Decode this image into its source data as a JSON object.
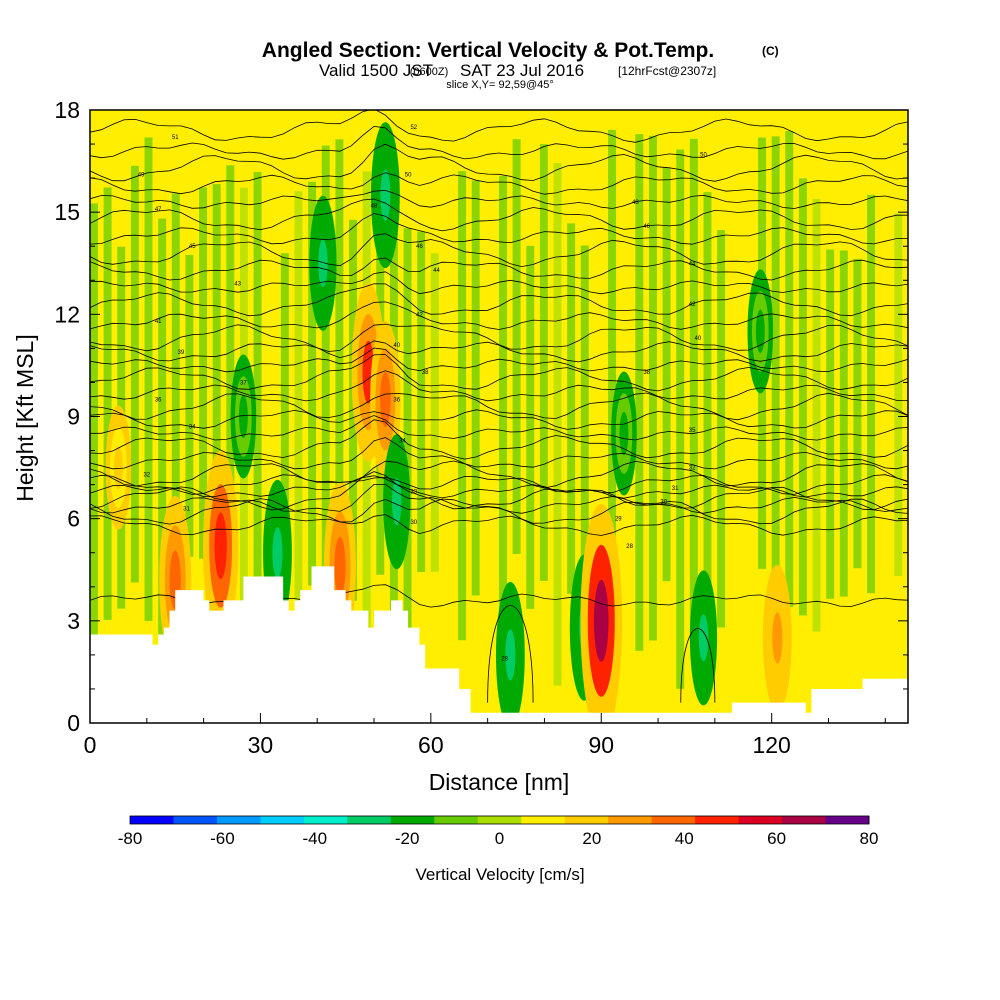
{
  "header": {
    "title_main": "Angled Section: Vertical Velocity & Pot.Temp.",
    "title_unit": "(C)",
    "valid_prefix": "Valid 1500 JST",
    "valid_utc": "(0600Z)",
    "valid_date": "SAT 23 Jul 2016",
    "forecast": "[12hrFcst@2307z]",
    "slice": "slice X,Y= 92,59@45°"
  },
  "chart_data": {
    "type": "heatmap",
    "title": "Angled Section: Vertical Velocity & Pot.Temp.",
    "xlabel": "Distance [nm]",
    "ylabel": "Height [Kft MSL]",
    "xlim": [
      0,
      144
    ],
    "ylim": [
      0,
      18
    ],
    "x_ticks": [
      0,
      30,
      60,
      90,
      120
    ],
    "y_ticks": [
      0,
      3,
      6,
      9,
      12,
      15,
      18
    ],
    "colorbar": {
      "label": "Vertical Velocity [cm/s]",
      "range": [
        -80,
        80
      ],
      "tick_labels": [
        "-80",
        "-60",
        "-40",
        "-20",
        "0",
        "20",
        "40",
        "60",
        "80"
      ],
      "colors": [
        "#0000ff",
        "#0055ff",
        "#0099ff",
        "#00ccff",
        "#00eecc",
        "#00cc66",
        "#00aa00",
        "#66cc00",
        "#aadd00",
        "#ffee00",
        "#ffcc00",
        "#ff9900",
        "#ff6600",
        "#ff2200",
        "#dd0022",
        "#aa0044",
        "#660088"
      ]
    },
    "terrain_height_kft": [
      [
        0,
        2.6
      ],
      [
        6,
        2.6
      ],
      [
        10,
        2.6
      ],
      [
        11,
        2.3
      ],
      [
        12,
        2.6
      ],
      [
        13,
        2.8
      ],
      [
        14,
        3.3
      ],
      [
        15,
        3.9
      ],
      [
        19,
        3.9
      ],
      [
        20,
        3.6
      ],
      [
        21,
        3.3
      ],
      [
        23,
        3.3
      ],
      [
        23.5,
        3.6
      ],
      [
        26,
        3.6
      ],
      [
        27,
        4.3
      ],
      [
        33,
        4.3
      ],
      [
        34,
        3.6
      ],
      [
        35,
        3.3
      ],
      [
        36,
        3.6
      ],
      [
        37,
        3.9
      ],
      [
        38,
        3.9
      ],
      [
        39,
        4.6
      ],
      [
        42,
        4.6
      ],
      [
        43,
        3.9
      ],
      [
        45,
        3.6
      ],
      [
        46,
        3.3
      ],
      [
        48,
        3.3
      ],
      [
        49,
        2.8
      ],
      [
        50,
        3.3
      ],
      [
        52,
        3.3
      ],
      [
        53,
        3.6
      ],
      [
        55,
        3.3
      ],
      [
        56,
        2.8
      ],
      [
        58,
        2.3
      ],
      [
        59,
        1.6
      ],
      [
        64,
        1.6
      ],
      [
        65,
        1.0
      ],
      [
        67,
        0.3
      ],
      [
        112,
        0.3
      ],
      [
        113,
        0.6
      ],
      [
        125,
        0.6
      ],
      [
        126,
        0.3
      ],
      [
        127,
        1.0
      ],
      [
        135,
        1.0
      ],
      [
        136,
        1.3
      ],
      [
        144,
        1.3
      ]
    ],
    "velocity_features": [
      {
        "x": 5,
        "y": 7.5,
        "value": 20,
        "kind": "updraft"
      },
      {
        "x": 15,
        "y": 4.2,
        "value": 40,
        "kind": "updraft"
      },
      {
        "x": 23,
        "y": 5.2,
        "value": 50,
        "kind": "updraft"
      },
      {
        "x": 27,
        "y": 9.0,
        "value": -20,
        "kind": "downdraft"
      },
      {
        "x": 33,
        "y": 5.0,
        "value": -30,
        "kind": "downdraft"
      },
      {
        "x": 41,
        "y": 13.5,
        "value": -25,
        "kind": "downdraft"
      },
      {
        "x": 44,
        "y": 4.6,
        "value": 40,
        "kind": "updraft"
      },
      {
        "x": 49,
        "y": 10.3,
        "value": 45,
        "kind": "updraft"
      },
      {
        "x": 52,
        "y": 9.5,
        "value": 35,
        "kind": "updraft"
      },
      {
        "x": 52,
        "y": 15.5,
        "value": -30,
        "kind": "downdraft"
      },
      {
        "x": 54,
        "y": 6.5,
        "value": -25,
        "kind": "downdraft"
      },
      {
        "x": 74,
        "y": 2.0,
        "value": -30,
        "kind": "downdraft"
      },
      {
        "x": 87,
        "y": 2.8,
        "value": -30,
        "kind": "downdraft"
      },
      {
        "x": 90,
        "y": 3.0,
        "value": 70,
        "kind": "updraft"
      },
      {
        "x": 94,
        "y": 8.5,
        "value": -20,
        "kind": "downdraft"
      },
      {
        "x": 108,
        "y": 2.5,
        "value": -25,
        "kind": "downdraft"
      },
      {
        "x": 118,
        "y": 11.5,
        "value": -20,
        "kind": "downdraft"
      },
      {
        "x": 121,
        "y": 2.5,
        "value": 30,
        "kind": "updraft"
      }
    ],
    "isentropes": {
      "count": 30,
      "levels_kft": [
        3.6,
        5.8,
        6.2,
        6.4,
        6.6,
        6.8,
        7.0,
        7.3,
        7.7,
        8.1,
        8.5,
        8.9,
        9.3,
        9.7,
        10.1,
        10.5,
        10.9,
        11.3,
        11.8,
        12.3,
        12.8,
        13.3,
        13.8,
        14.3,
        14.8,
        15.3,
        15.8,
        16.3,
        16.8,
        17.4
      ],
      "line_labels": [
        {
          "x": 73,
          "y": 1.9,
          "text": "28"
        },
        {
          "x": 95,
          "y": 5.2,
          "text": "28"
        },
        {
          "x": 93,
          "y": 6.0,
          "text": "29"
        },
        {
          "x": 57,
          "y": 5.9,
          "text": "30"
        },
        {
          "x": 101,
          "y": 6.5,
          "text": "30"
        },
        {
          "x": 17,
          "y": 6.3,
          "text": "31"
        },
        {
          "x": 103,
          "y": 6.9,
          "text": "31"
        },
        {
          "x": 10,
          "y": 7.3,
          "text": "32"
        },
        {
          "x": 106,
          "y": 7.5,
          "text": "32"
        },
        {
          "x": 57,
          "y": 6.8,
          "text": "33"
        },
        {
          "x": 55,
          "y": 8.3,
          "text": "34"
        },
        {
          "x": 18,
          "y": 8.7,
          "text": "34"
        },
        {
          "x": 106,
          "y": 8.6,
          "text": "35"
        },
        {
          "x": 12,
          "y": 9.5,
          "text": "36"
        },
        {
          "x": 54,
          "y": 9.5,
          "text": "36"
        },
        {
          "x": 27,
          "y": 10.0,
          "text": "37"
        },
        {
          "x": 59,
          "y": 10.3,
          "text": "38"
        },
        {
          "x": 98,
          "y": 10.3,
          "text": "38"
        },
        {
          "x": 16,
          "y": 10.9,
          "text": "39"
        },
        {
          "x": 54,
          "y": 11.1,
          "text": "40"
        },
        {
          "x": 107,
          "y": 11.3,
          "text": "40"
        },
        {
          "x": 12,
          "y": 11.8,
          "text": "41"
        },
        {
          "x": 58,
          "y": 12.0,
          "text": "42"
        },
        {
          "x": 106,
          "y": 12.3,
          "text": "42"
        },
        {
          "x": 26,
          "y": 12.9,
          "text": "43"
        },
        {
          "x": 61,
          "y": 13.3,
          "text": "44"
        },
        {
          "x": 106,
          "y": 13.5,
          "text": "44"
        },
        {
          "x": 18,
          "y": 14.0,
          "text": "45"
        },
        {
          "x": 58,
          "y": 14.0,
          "text": "46"
        },
        {
          "x": 98,
          "y": 14.6,
          "text": "46"
        },
        {
          "x": 12,
          "y": 15.1,
          "text": "47"
        },
        {
          "x": 50,
          "y": 15.2,
          "text": "48"
        },
        {
          "x": 96,
          "y": 15.3,
          "text": "48"
        },
        {
          "x": 9,
          "y": 16.1,
          "text": "49"
        },
        {
          "x": 56,
          "y": 16.1,
          "text": "50"
        },
        {
          "x": 108,
          "y": 16.7,
          "text": "50"
        },
        {
          "x": 15,
          "y": 17.2,
          "text": "51"
        },
        {
          "x": 57,
          "y": 17.5,
          "text": "52"
        }
      ]
    }
  }
}
